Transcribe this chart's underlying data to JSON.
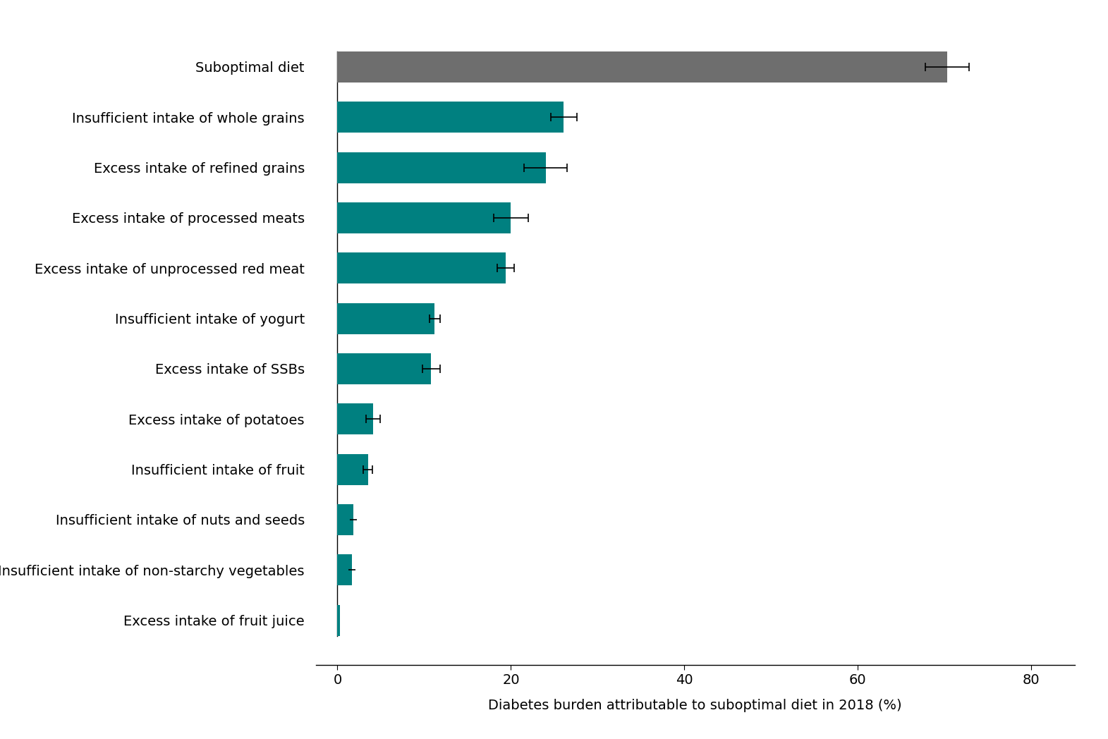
{
  "categories": [
    "Suboptimal diet",
    "Insufficient intake of whole grains",
    "Excess intake of refined grains",
    "Excess intake of processed meats",
    "Excess intake of unprocessed red meat",
    "Insufficient intake of yogurt",
    "Excess intake of SSBs",
    "Excess intake of potatoes",
    "Insufficient intake of fruit",
    "Insufficient intake of nuts and seeds",
    "Insufficient intake of non-starchy vegetables",
    "Excess intake of fruit juice"
  ],
  "values": [
    70.3,
    26.1,
    24.0,
    20.0,
    19.4,
    11.2,
    10.8,
    4.1,
    3.5,
    1.8,
    1.7,
    0.3
  ],
  "errors_low": [
    2.5,
    1.5,
    2.5,
    2.0,
    1.0,
    0.6,
    1.0,
    0.8,
    0.5,
    0.4,
    0.4,
    0.0
  ],
  "errors_high": [
    2.5,
    1.5,
    2.5,
    2.0,
    1.0,
    0.6,
    1.0,
    0.8,
    0.5,
    0.4,
    0.4,
    0.0
  ],
  "bar_colors": [
    "#6e6e6e",
    "#008080",
    "#008080",
    "#008080",
    "#008080",
    "#008080",
    "#008080",
    "#008080",
    "#008080",
    "#008080",
    "#008080",
    "#008080"
  ],
  "xlabel": "Diabetes burden attributable to suboptimal diet in 2018 (%)",
  "xlim": [
    -2.5,
    85
  ],
  "xticks": [
    0,
    20,
    40,
    60,
    80
  ],
  "bar_height": 0.62,
  "background_color": "#ffffff",
  "show_errorbar": [
    true,
    true,
    true,
    true,
    true,
    true,
    true,
    true,
    true,
    true,
    true,
    false
  ],
  "small_errbar": [
    false,
    false,
    false,
    false,
    false,
    false,
    false,
    false,
    false,
    true,
    true,
    false
  ]
}
